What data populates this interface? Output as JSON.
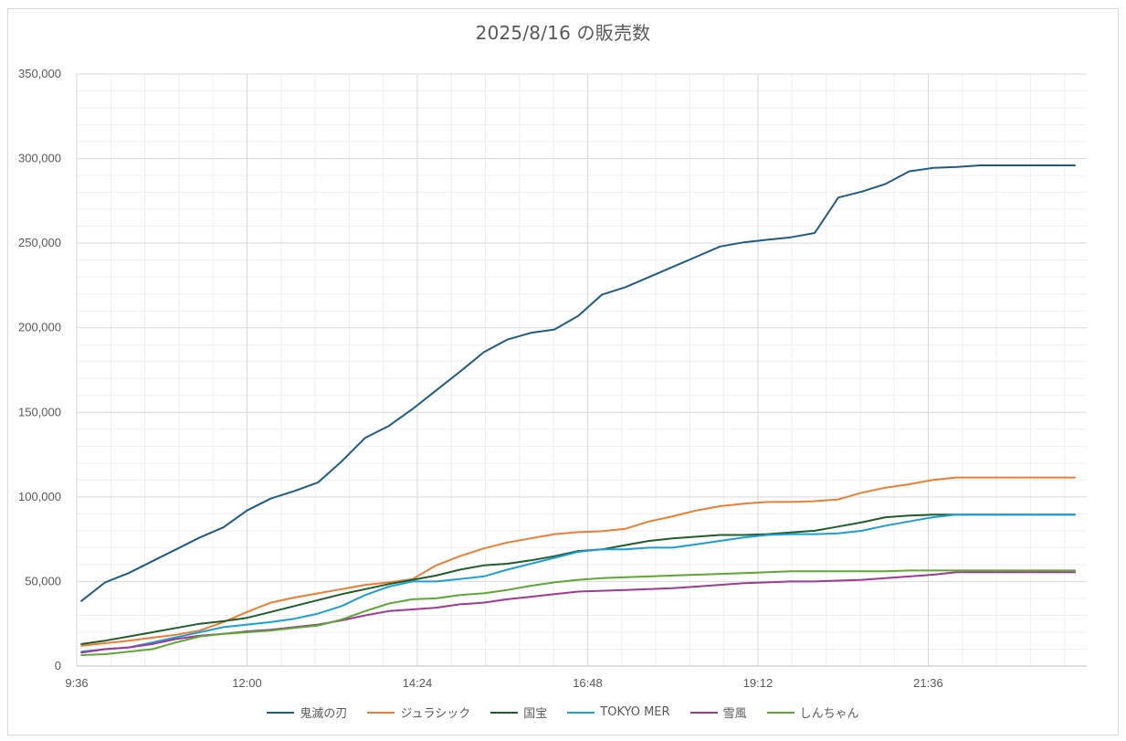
{
  "chart_data": {
    "type": "line",
    "title": "2025/8/16 の販売数",
    "xlabel": "",
    "ylabel": "",
    "ylim": [
      0,
      350000
    ],
    "y_ticks": [
      "0",
      "50,000",
      "100,000",
      "150,000",
      "200,000",
      "250,000",
      "300,000",
      "350,000"
    ],
    "x_ticks": [
      "9:36",
      "12:00",
      "14:24",
      "16:48",
      "19:12",
      "21:36"
    ],
    "x_range": [
      "9:36",
      "23:50"
    ],
    "grid": "major and minor",
    "legend_position": "bottom",
    "x": [
      "9:40",
      "10:00",
      "10:20",
      "10:40",
      "11:00",
      "11:20",
      "11:40",
      "12:00",
      "12:20",
      "12:40",
      "13:00",
      "13:20",
      "13:40",
      "14:00",
      "14:20",
      "14:40",
      "15:00",
      "15:20",
      "15:40",
      "16:00",
      "16:20",
      "16:40",
      "17:00",
      "17:20",
      "17:40",
      "18:00",
      "18:20",
      "18:40",
      "19:00",
      "19:20",
      "19:40",
      "20:00",
      "20:20",
      "20:40",
      "21:00",
      "21:20",
      "21:40",
      "22:00",
      "22:20",
      "22:40",
      "23:00",
      "23:20",
      "23:40"
    ],
    "series": [
      {
        "name": "鬼滅の刃",
        "color": "#1f5c82",
        "values": [
          38500,
          49500,
          55000,
          62000,
          69000,
          76000,
          82000,
          92000,
          99000,
          103500,
          108500,
          121000,
          135000,
          142000,
          152000,
          163000,
          174000,
          185500,
          193000,
          197000,
          199000,
          207000,
          219500,
          224000,
          230000,
          236000,
          242000,
          248000,
          250500,
          252000,
          253500,
          256000,
          277000,
          280500,
          285000,
          292500,
          294500,
          295000,
          296000,
          296000,
          296000,
          296000,
          296000
        ]
      },
      {
        "name": "ジュラシック",
        "color": "#ed7d31",
        "values": [
          12000,
          13500,
          15000,
          16800,
          18500,
          21000,
          26000,
          32000,
          37500,
          40500,
          43000,
          45500,
          48000,
          49500,
          51500,
          59500,
          65000,
          69500,
          73000,
          75500,
          78000,
          79200,
          79700,
          81200,
          85500,
          88500,
          92000,
          94500,
          96000,
          97000,
          97000,
          97500,
          98500,
          102500,
          105500,
          107500,
          110000,
          111500,
          111500,
          111500,
          111500,
          111500,
          111500
        ]
      },
      {
        "name": "国宝",
        "color": "#1e5e2a",
        "values": [
          13000,
          15000,
          17500,
          20000,
          22500,
          25000,
          26500,
          28500,
          32000,
          35500,
          39000,
          42500,
          45500,
          48500,
          51000,
          53500,
          57000,
          59500,
          60500,
          62500,
          65000,
          68000,
          69000,
          71500,
          74000,
          75500,
          76500,
          77500,
          77500,
          78000,
          79000,
          80000,
          82500,
          85000,
          88000,
          89000,
          89500,
          89500,
          89500,
          89500,
          89500,
          89500,
          89500
        ]
      },
      {
        "name": "TOKYO MER",
        "color": "#1b9fd6",
        "values": [
          8500,
          10000,
          11000,
          14000,
          17000,
          20000,
          23000,
          24500,
          26000,
          28000,
          31000,
          35500,
          42000,
          47000,
          50000,
          50000,
          51500,
          53000,
          57000,
          60500,
          64000,
          67500,
          69000,
          69000,
          70000,
          70000,
          72000,
          74000,
          76000,
          77500,
          78000,
          78000,
          78500,
          80000,
          83000,
          85500,
          88000,
          89500,
          89500,
          89500,
          89500,
          89500,
          89500
        ]
      },
      {
        "name": "雪風",
        "color": "#a03896",
        "values": [
          8000,
          10000,
          11000,
          13000,
          16000,
          18000,
          19000,
          20500,
          21500,
          23000,
          24500,
          27000,
          30000,
          32500,
          33500,
          34500,
          36500,
          37500,
          39500,
          41000,
          42500,
          44000,
          44500,
          45000,
          45500,
          46000,
          47000,
          48000,
          49000,
          49500,
          50000,
          50000,
          50500,
          51000,
          52000,
          53000,
          54000,
          55500,
          55500,
          55500,
          55500,
          55500,
          55500
        ]
      },
      {
        "name": "しんちゃん",
        "color": "#5ca832",
        "values": [
          6500,
          7000,
          8500,
          10000,
          14000,
          17500,
          19000,
          20000,
          21000,
          22500,
          24000,
          27500,
          32500,
          37000,
          39500,
          40000,
          42000,
          43000,
          45000,
          47500,
          49500,
          51000,
          52000,
          52500,
          53000,
          53500,
          54000,
          54500,
          55000,
          55500,
          56000,
          56000,
          56000,
          56000,
          56000,
          56500,
          56500,
          56500,
          56500,
          56500,
          56500,
          56500,
          56500
        ]
      }
    ]
  }
}
